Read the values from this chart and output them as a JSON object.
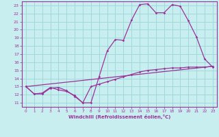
{
  "xlabel": "Windchill (Refroidissement éolien,°C)",
  "background_color": "#c8eef0",
  "grid_color": "#a0d8dc",
  "line_color": "#993399",
  "spine_color": "#993399",
  "xlim": [
    -0.5,
    23.5
  ],
  "ylim": [
    10.5,
    23.5
  ],
  "yticks": [
    11,
    12,
    13,
    14,
    15,
    16,
    17,
    18,
    19,
    20,
    21,
    22,
    23
  ],
  "xticks": [
    0,
    1,
    2,
    3,
    4,
    5,
    6,
    7,
    8,
    9,
    10,
    11,
    12,
    13,
    14,
    15,
    16,
    17,
    18,
    19,
    20,
    21,
    22,
    23
  ],
  "line1_x": [
    0,
    1,
    2,
    3,
    4,
    5,
    6,
    7,
    8,
    9,
    10,
    11,
    12,
    13,
    14,
    15,
    16,
    17,
    18,
    19,
    20,
    21,
    22,
    23
  ],
  "line1_y": [
    13.0,
    12.1,
    12.1,
    12.8,
    12.9,
    12.5,
    11.8,
    11.0,
    11.0,
    14.2,
    17.4,
    18.8,
    18.7,
    21.2,
    23.1,
    23.2,
    22.1,
    22.1,
    23.1,
    22.9,
    21.1,
    19.1,
    16.4,
    15.4
  ],
  "line2_x": [
    0,
    1,
    2,
    3,
    4,
    5,
    6,
    7,
    8,
    9,
    10,
    11,
    12,
    13,
    14,
    15,
    16,
    17,
    18,
    19,
    20,
    21,
    22,
    23
  ],
  "line2_y": [
    13.0,
    12.1,
    12.2,
    12.9,
    12.6,
    12.4,
    11.9,
    11.0,
    13.0,
    13.3,
    13.6,
    13.9,
    14.2,
    14.5,
    14.8,
    15.0,
    15.1,
    15.2,
    15.3,
    15.3,
    15.4,
    15.4,
    15.4,
    15.5
  ],
  "line3_x": [
    0,
    23
  ],
  "line3_y": [
    13.0,
    15.5
  ]
}
